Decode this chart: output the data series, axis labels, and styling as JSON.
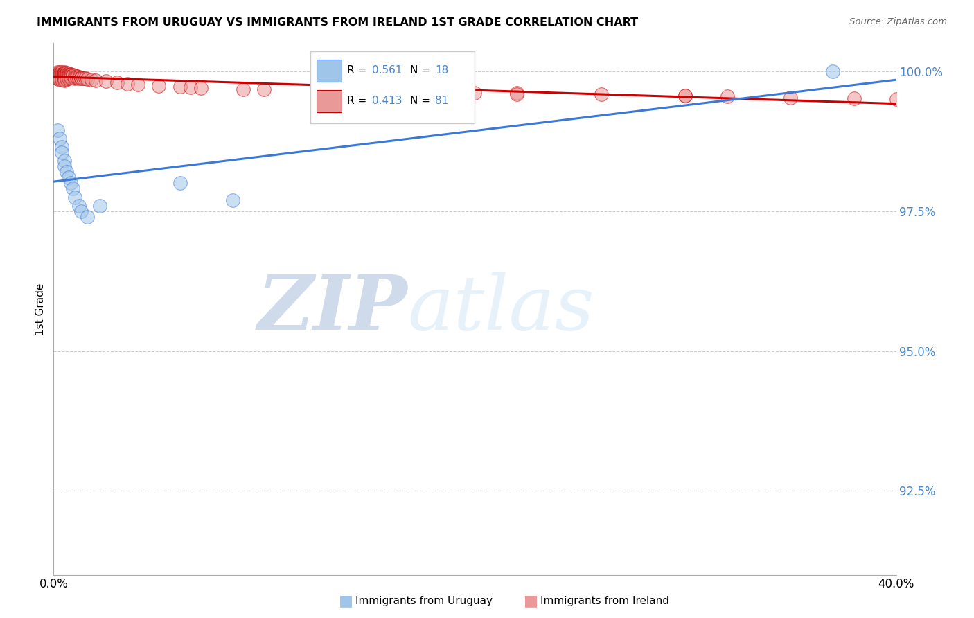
{
  "title": "IMMIGRANTS FROM URUGUAY VS IMMIGRANTS FROM IRELAND 1ST GRADE CORRELATION CHART",
  "source": "Source: ZipAtlas.com",
  "ylabel": "1st Grade",
  "xlim": [
    0.0,
    0.4
  ],
  "ylim": [
    0.91,
    1.005
  ],
  "yticks": [
    0.925,
    0.95,
    0.975,
    1.0
  ],
  "ytick_labels": [
    "92.5%",
    "95.0%",
    "97.5%",
    "100.0%"
  ],
  "xticks": [
    0.0,
    0.05,
    0.1,
    0.15,
    0.2,
    0.25,
    0.3,
    0.35,
    0.4
  ],
  "xtick_labels": [
    "0.0%",
    "",
    "",
    "",
    "",
    "",
    "",
    "",
    "40.0%"
  ],
  "legend_r_uruguay": "0.561",
  "legend_n_uruguay": "18",
  "legend_r_ireland": "0.413",
  "legend_n_ireland": "81",
  "color_uruguay": "#9fc5e8",
  "color_ireland": "#ea9999",
  "color_trendline_uruguay": "#3c78d8",
  "color_trendline_ireland": "#cc0000",
  "watermark_zip": "ZIP",
  "watermark_atlas": "atlas",
  "watermark_color_zip": "#b8cce4",
  "watermark_color_atlas": "#d0e4f7",
  "uruguay_x": [
    0.002,
    0.003,
    0.004,
    0.004,
    0.005,
    0.005,
    0.006,
    0.007,
    0.008,
    0.009,
    0.01,
    0.012,
    0.013,
    0.016,
    0.022,
    0.06,
    0.085,
    0.37
  ],
  "uruguay_y": [
    0.9895,
    0.988,
    0.9865,
    0.9855,
    0.984,
    0.983,
    0.982,
    0.981,
    0.98,
    0.979,
    0.9775,
    0.976,
    0.975,
    0.974,
    0.976,
    0.98,
    0.977,
    1.0
  ],
  "ireland_x": [
    0.001,
    0.001,
    0.002,
    0.002,
    0.002,
    0.002,
    0.003,
    0.003,
    0.003,
    0.003,
    0.003,
    0.003,
    0.003,
    0.004,
    0.004,
    0.004,
    0.004,
    0.004,
    0.004,
    0.005,
    0.005,
    0.005,
    0.005,
    0.005,
    0.005,
    0.005,
    0.005,
    0.005,
    0.006,
    0.006,
    0.006,
    0.006,
    0.006,
    0.006,
    0.007,
    0.007,
    0.007,
    0.007,
    0.007,
    0.008,
    0.008,
    0.008,
    0.008,
    0.009,
    0.009,
    0.01,
    0.01,
    0.01,
    0.011,
    0.011,
    0.012,
    0.012,
    0.013,
    0.013,
    0.014,
    0.015,
    0.016,
    0.018,
    0.02,
    0.025,
    0.03,
    0.035,
    0.04,
    0.05,
    0.06,
    0.065,
    0.07,
    0.09,
    0.1,
    0.14,
    0.18,
    0.22,
    0.26,
    0.3,
    0.2,
    0.22,
    0.3,
    0.32,
    0.35,
    0.38,
    0.4
  ],
  "ireland_y": [
    0.9995,
    0.999,
    0.9998,
    0.9995,
    0.9992,
    0.9988,
    0.9998,
    0.9996,
    0.9994,
    0.9992,
    0.999,
    0.9988,
    0.9985,
    0.9998,
    0.9995,
    0.9992,
    0.999,
    0.9988,
    0.9985,
    0.9998,
    0.9997,
    0.9996,
    0.9994,
    0.9992,
    0.999,
    0.9988,
    0.9986,
    0.9984,
    0.9997,
    0.9995,
    0.9993,
    0.9991,
    0.9989,
    0.9986,
    0.9996,
    0.9994,
    0.9992,
    0.999,
    0.9988,
    0.9995,
    0.9993,
    0.9991,
    0.9989,
    0.9994,
    0.9992,
    0.9992,
    0.999,
    0.9988,
    0.9991,
    0.9989,
    0.999,
    0.9988,
    0.9989,
    0.9987,
    0.9988,
    0.9987,
    0.9986,
    0.9985,
    0.9984,
    0.9982,
    0.998,
    0.9978,
    0.9976,
    0.9974,
    0.9972,
    0.9971,
    0.997,
    0.9968,
    0.9967,
    0.9965,
    0.9963,
    0.9961,
    0.9959,
    0.9957,
    0.9961,
    0.9959,
    0.9957,
    0.9955,
    0.9953,
    0.9951,
    0.995
  ]
}
